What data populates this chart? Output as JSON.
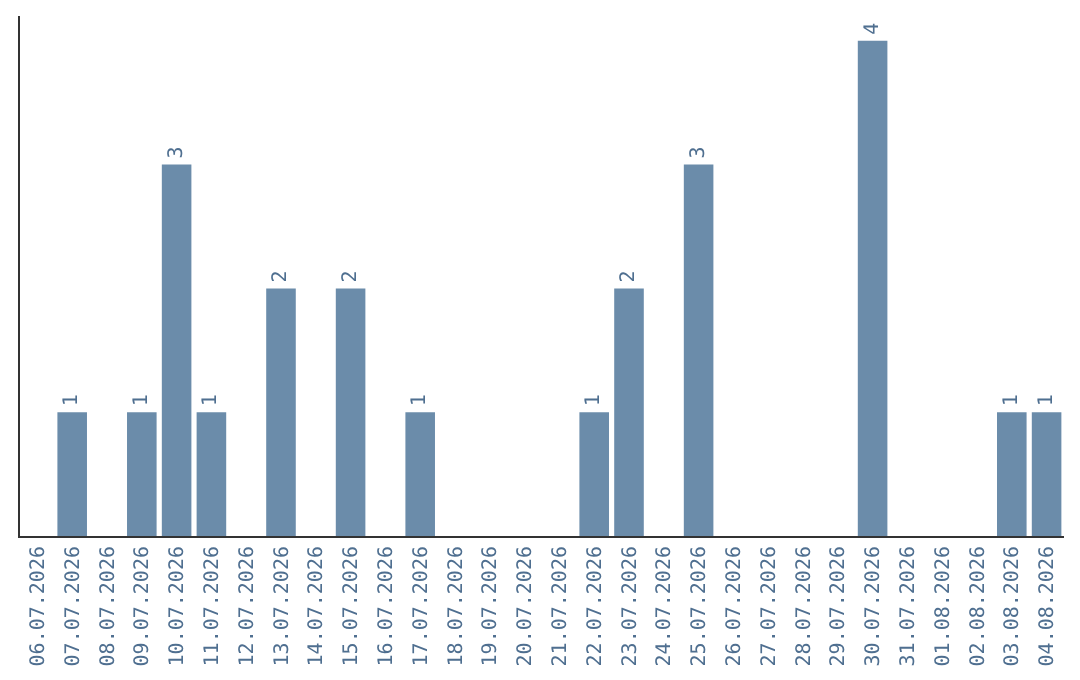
{
  "chart_data": {
    "type": "bar",
    "categories": [
      "06.07.2026",
      "07.07.2026",
      "08.07.2026",
      "09.07.2026",
      "10.07.2026",
      "11.07.2026",
      "12.07.2026",
      "13.07.2026",
      "14.07.2026",
      "15.07.2026",
      "16.07.2026",
      "17.07.2026",
      "18.07.2026",
      "19.07.2026",
      "20.07.2026",
      "21.07.2026",
      "22.07.2026",
      "23.07.2026",
      "24.07.2026",
      "25.07.2026",
      "26.07.2026",
      "27.07.2026",
      "28.07.2026",
      "29.07.2026",
      "30.07.2026",
      "31.07.2026",
      "01.08.2026",
      "02.08.2026",
      "03.08.2026",
      "04.08.2026"
    ],
    "values": [
      0,
      1,
      0,
      1,
      3,
      1,
      0,
      2,
      0,
      2,
      0,
      1,
      0,
      0,
      0,
      0,
      1,
      2,
      0,
      3,
      0,
      0,
      0,
      0,
      4,
      0,
      0,
      0,
      1,
      1
    ],
    "value_labels": [
      null,
      "1",
      null,
      "1",
      "3",
      "1",
      null,
      "2",
      null,
      "2",
      null,
      "1",
      null,
      null,
      null,
      null,
      "1",
      "2",
      null,
      "3",
      null,
      null,
      null,
      null,
      "4",
      null,
      null,
      null,
      "1",
      "1"
    ],
    "color": "#6b8caa",
    "ylim": [
      0,
      4.2
    ],
    "tick_labels": "x"
  }
}
